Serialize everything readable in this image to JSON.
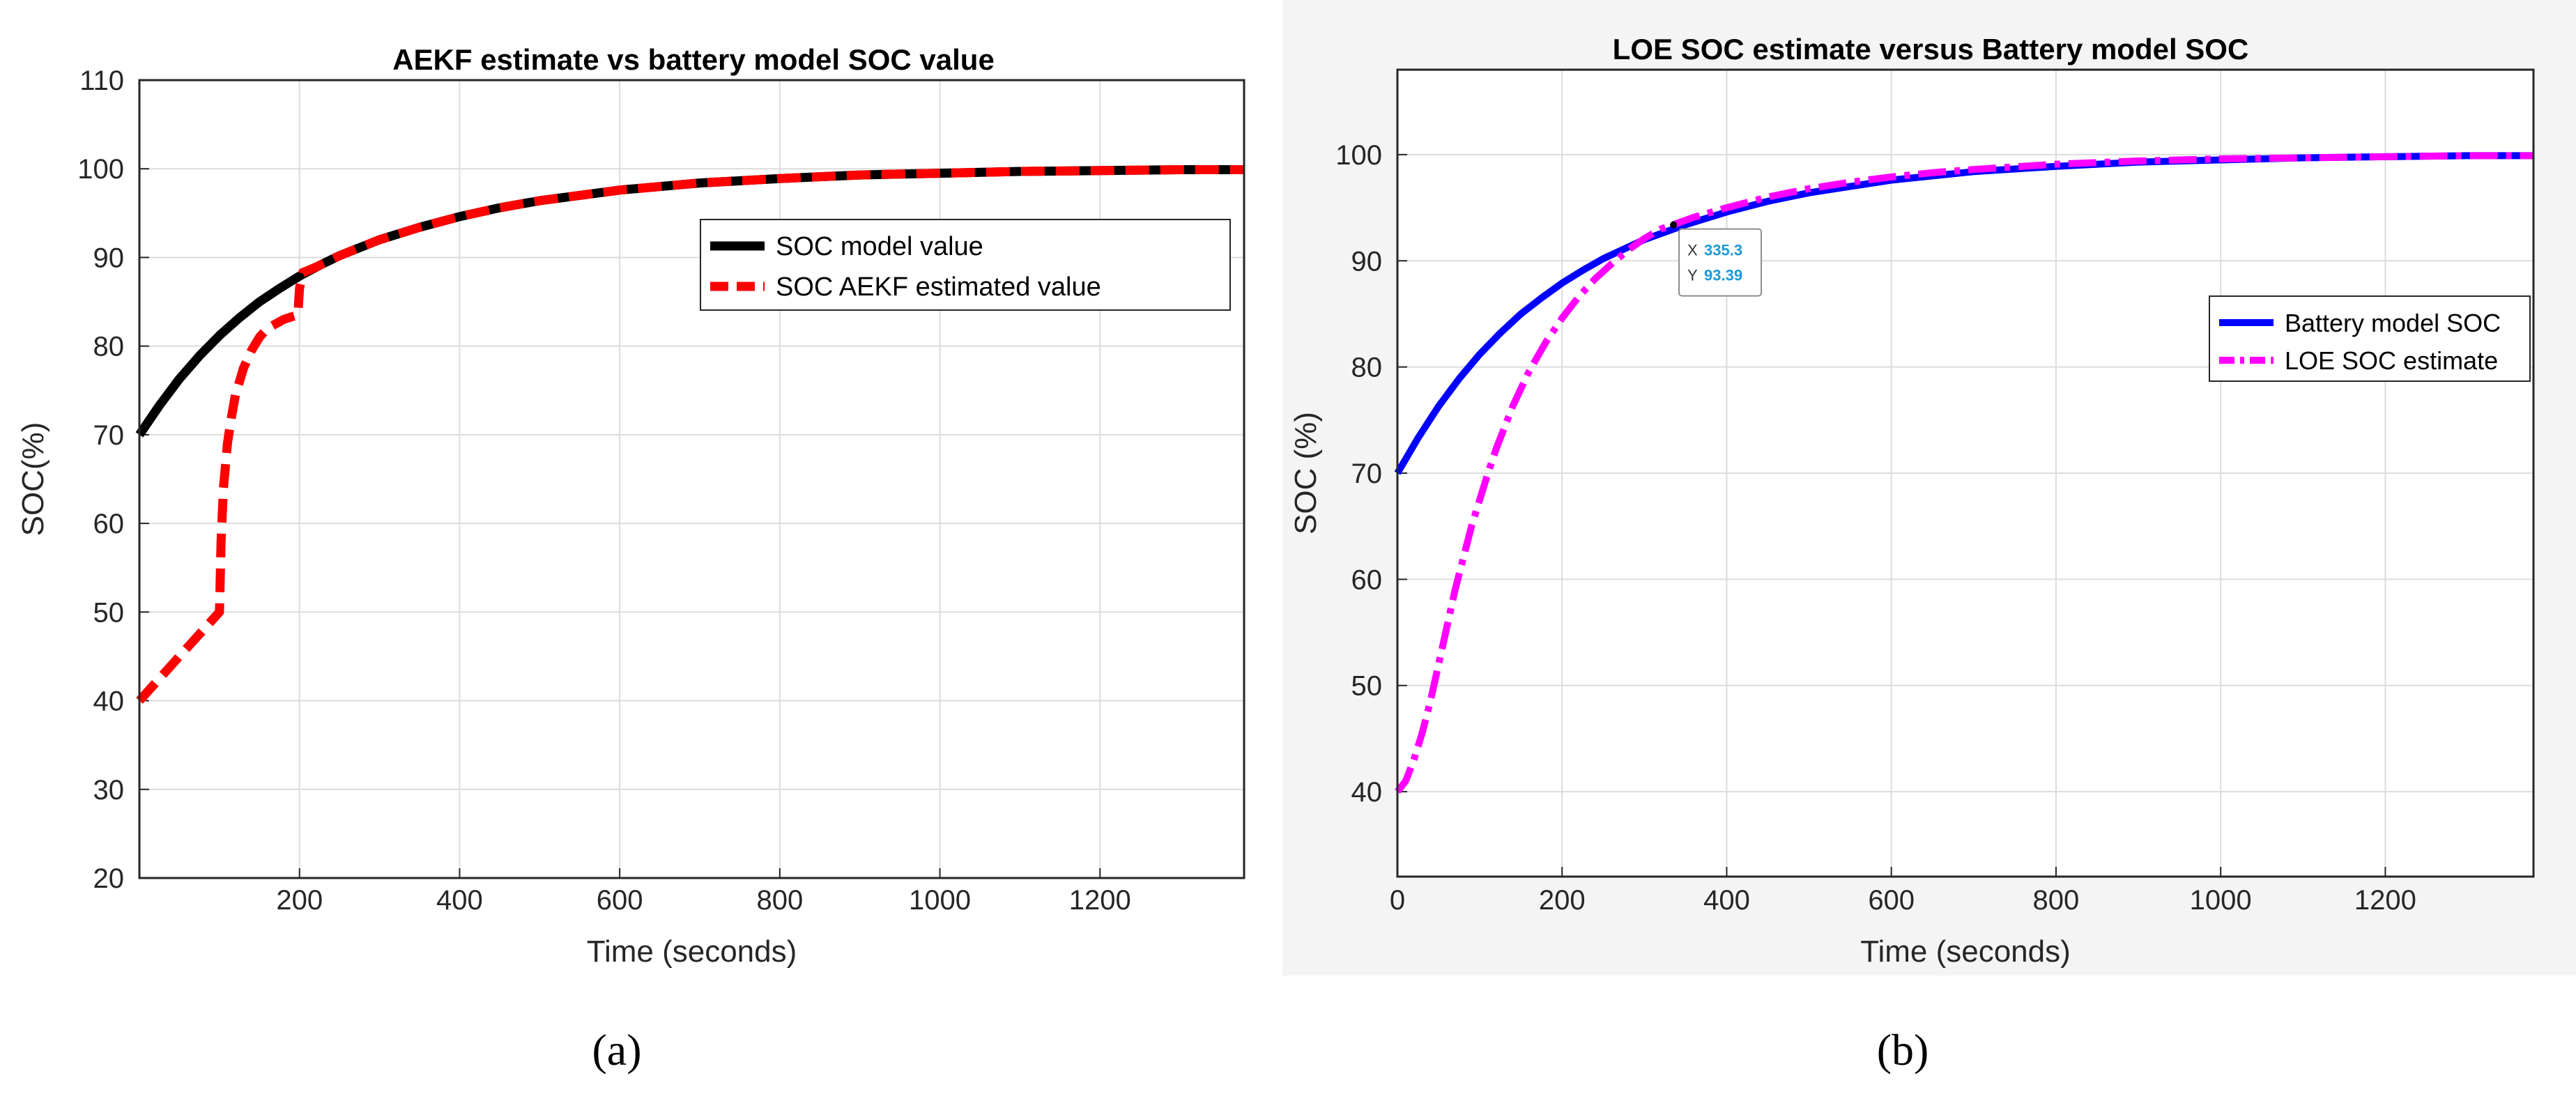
{
  "chart_data": [
    {
      "type": "line",
      "panel": "a",
      "title": "AEKF estimate vs battery model  SOC value",
      "xlabel": "Time (seconds)",
      "ylabel": "SOC(%)",
      "xlim": [
        0,
        1380
      ],
      "ylim": [
        20,
        110
      ],
      "xticks": [
        200,
        400,
        600,
        800,
        1000,
        1200
      ],
      "yticks": [
        20,
        30,
        40,
        50,
        60,
        70,
        80,
        90,
        100,
        110
      ],
      "grid": true,
      "legend_position": "top-right",
      "series": [
        {
          "name": "SOC model value",
          "color": "#000000",
          "style": "solid",
          "x": [
            0,
            25,
            50,
            75,
            100,
            125,
            150,
            175,
            200,
            225,
            250,
            300,
            350,
            400,
            450,
            500,
            550,
            600,
            650,
            700,
            800,
            900,
            1000,
            1100,
            1200,
            1300,
            1380
          ],
          "y": [
            70,
            73.3,
            76.3,
            78.9,
            81.2,
            83.2,
            85.0,
            86.5,
            87.9,
            89.1,
            90.2,
            92.0,
            93.4,
            94.6,
            95.6,
            96.4,
            97.0,
            97.6,
            98.0,
            98.4,
            98.9,
            99.3,
            99.5,
            99.7,
            99.8,
            99.9,
            99.9
          ]
        },
        {
          "name": "SOC AEKF estimated value",
          "color": "#ff0000",
          "style": "dashed",
          "x": [
            0,
            25,
            50,
            75,
            100,
            102,
            105,
            110,
            115,
            120,
            125,
            130,
            140,
            150,
            160,
            170,
            180,
            190,
            198,
            200,
            204,
            210,
            225,
            250,
            300,
            350,
            400,
            450,
            500,
            550,
            600,
            650,
            700,
            800,
            900,
            1000,
            1100,
            1200,
            1300,
            1380
          ],
          "y": [
            40,
            42.5,
            45,
            47.5,
            50,
            58,
            64,
            69,
            72,
            74.5,
            76,
            77.5,
            79.5,
            81,
            82,
            82.5,
            83,
            83.3,
            83.5,
            86.5,
            88.3,
            88.5,
            89.1,
            90.2,
            92.0,
            93.4,
            94.6,
            95.6,
            96.4,
            97.0,
            97.6,
            98.0,
            98.4,
            98.9,
            99.3,
            99.5,
            99.7,
            99.8,
            99.9,
            99.9
          ]
        }
      ]
    },
    {
      "type": "line",
      "panel": "b",
      "title": "LOE  SOC  estimate versus Battery model SOC",
      "xlabel": "Time (seconds)",
      "ylabel": "SOC (%)",
      "xlim": [
        0,
        1380
      ],
      "ylim": [
        32,
        108
      ],
      "xticks": [
        0,
        200,
        400,
        600,
        800,
        1000,
        1200
      ],
      "yticks": [
        40,
        50,
        60,
        70,
        80,
        90,
        100
      ],
      "grid": true,
      "legend_position": "middle-right",
      "series": [
        {
          "name": "Battery model SOC",
          "color": "#0000ff",
          "style": "solid",
          "x": [
            0,
            25,
            50,
            75,
            100,
            125,
            150,
            175,
            200,
            225,
            250,
            300,
            350,
            400,
            450,
            500,
            550,
            600,
            650,
            700,
            800,
            900,
            1000,
            1100,
            1200,
            1300,
            1380
          ],
          "y": [
            70,
            73.3,
            76.3,
            78.9,
            81.2,
            83.2,
            85.0,
            86.5,
            87.9,
            89.1,
            90.2,
            92.0,
            93.4,
            94.6,
            95.6,
            96.4,
            97.0,
            97.6,
            98.0,
            98.4,
            98.9,
            99.3,
            99.5,
            99.7,
            99.8,
            99.9,
            99.9
          ]
        },
        {
          "name": "LOE  SOC  estimate",
          "color": "#ff00ff",
          "style": "dashdot",
          "x": [
            0,
            10,
            20,
            30,
            40,
            50,
            60,
            70,
            80,
            90,
            100,
            110,
            120,
            140,
            160,
            180,
            200,
            220,
            240,
            260,
            280,
            300,
            320,
            335,
            360,
            400,
            450,
            500,
            550,
            600,
            650,
            700,
            800,
            900,
            1000,
            1100,
            1200,
            1300,
            1380
          ],
          "y": [
            40,
            41,
            43,
            45.5,
            48.5,
            52,
            55.5,
            59,
            62,
            65,
            67.5,
            70,
            72.3,
            76.3,
            79.6,
            82.3,
            84.6,
            86.6,
            88.3,
            89.7,
            91,
            92.1,
            93,
            93.4,
            94.1,
            95,
            96,
            96.8,
            97.4,
            97.9,
            98.3,
            98.6,
            99.1,
            99.4,
            99.6,
            99.7,
            99.8,
            99.9,
            99.9
          ]
        }
      ],
      "datatip": {
        "x_label": "X",
        "x_value": "335.3",
        "y_label": "Y",
        "y_value": "93.39",
        "x": 335.3,
        "y": 93.39
      }
    }
  ],
  "captions": {
    "a": "(a)",
    "b": "(b)"
  }
}
